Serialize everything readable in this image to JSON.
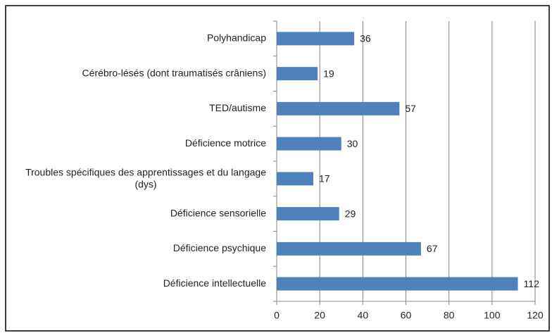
{
  "chart_data": {
    "type": "bar",
    "orientation": "horizontal",
    "categories": [
      "Polyhandicap",
      "Cérébro-lésés (dont traumatisés crâniens)",
      "TED/autisme",
      "Déficience motrice",
      "Troubles spécifiques des apprentissages et du langage (dys)",
      "Déficience sensorielle",
      "Déficience psychique",
      "Déficience intellectuelle"
    ],
    "values": [
      36,
      19,
      57,
      30,
      17,
      29,
      67,
      112
    ],
    "color": "#4f81bd",
    "xlim": [
      0,
      120
    ],
    "xticks": [
      0,
      20,
      40,
      60,
      80,
      100,
      120
    ],
    "grid": true
  }
}
